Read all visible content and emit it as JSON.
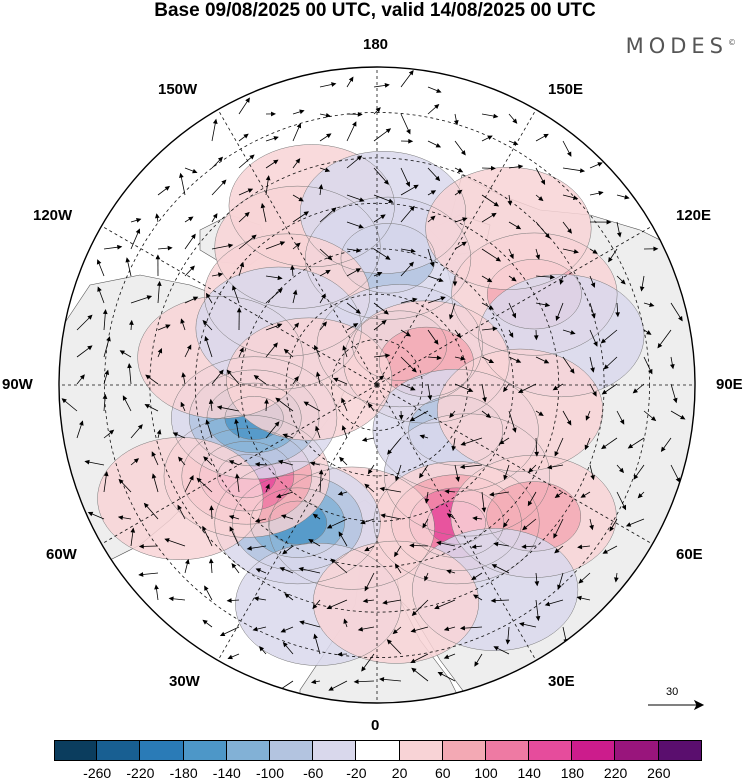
{
  "title": "Base 09/08/2025 00 UTC, valid 14/08/2025 00 UTC",
  "brand": "MODES",
  "brand_mark": "©",
  "map_labels": {
    "lon_180": "180",
    "lon_150W": "150W",
    "lon_150E": "150E",
    "lon_120W": "120W",
    "lon_120E": "120E",
    "lon_90W": "90W",
    "lon_90E": "90E",
    "lon_60W": "60W",
    "lon_60E": "60E",
    "lon_30W": "30W",
    "lon_30E": "30E",
    "lon_0": "0"
  },
  "vector_scale": "30",
  "colorbar": {
    "colors": [
      "#0b3d5e",
      "#185f92",
      "#2a7bb7",
      "#4d97c8",
      "#82b1d6",
      "#b3c4e0",
      "#d9d8ec",
      "#ffffff",
      "#f8d3d6",
      "#f3a9b4",
      "#ee7aa3",
      "#e64c9c",
      "#cc1c8c",
      "#99157c",
      "#5a0e6e"
    ],
    "ticks": [
      "-260",
      "-220",
      "-180",
      "-140",
      "-100",
      "-60",
      "-20",
      "20",
      "60",
      "100",
      "140",
      "180",
      "220",
      "260"
    ]
  },
  "anomaly_centers": [
    {
      "lon": -150,
      "lat": 55,
      "value": 40
    },
    {
      "lon": -160,
      "lat": 48,
      "value": 40
    },
    {
      "lon": 175,
      "lat": 62,
      "value": -80
    },
    {
      "lon": 178,
      "lat": 52,
      "value": -50
    },
    {
      "lon": -135,
      "lat": 62,
      "value": 40
    },
    {
      "lon": 120,
      "lat": 50,
      "value": 60
    },
    {
      "lon": 140,
      "lat": 45,
      "value": 40
    },
    {
      "lon": 105,
      "lat": 48,
      "value": -30
    },
    {
      "lon": 150,
      "lat": 80,
      "value": -90
    },
    {
      "lon": 115,
      "lat": 78,
      "value": 90
    },
    {
      "lon": 60,
      "lat": 70,
      "value": -90
    },
    {
      "lon": 45,
      "lat": 62,
      "value": -40
    },
    {
      "lon": 80,
      "lat": 58,
      "value": 40
    },
    {
      "lon": 30,
      "lat": 55,
      "value": 150
    },
    {
      "lon": 50,
      "lat": 45,
      "value": 60
    },
    {
      "lon": 30,
      "lat": 38,
      "value": -40
    },
    {
      "lon": -10,
      "lat": 58,
      "value": 40
    },
    {
      "lon": -30,
      "lat": 55,
      "value": -150
    },
    {
      "lon": -55,
      "lat": 55,
      "value": 140
    },
    {
      "lon": -75,
      "lat": 62,
      "value": -140
    },
    {
      "lon": -60,
      "lat": 40,
      "value": 40
    },
    {
      "lon": -100,
      "lat": 55,
      "value": 40
    },
    {
      "lon": -120,
      "lat": 65,
      "value": -40
    },
    {
      "lon": -95,
      "lat": 75,
      "value": 30
    },
    {
      "lon": -15,
      "lat": 40,
      "value": -40
    },
    {
      "lon": 5,
      "lat": 42,
      "value": 30
    }
  ]
}
